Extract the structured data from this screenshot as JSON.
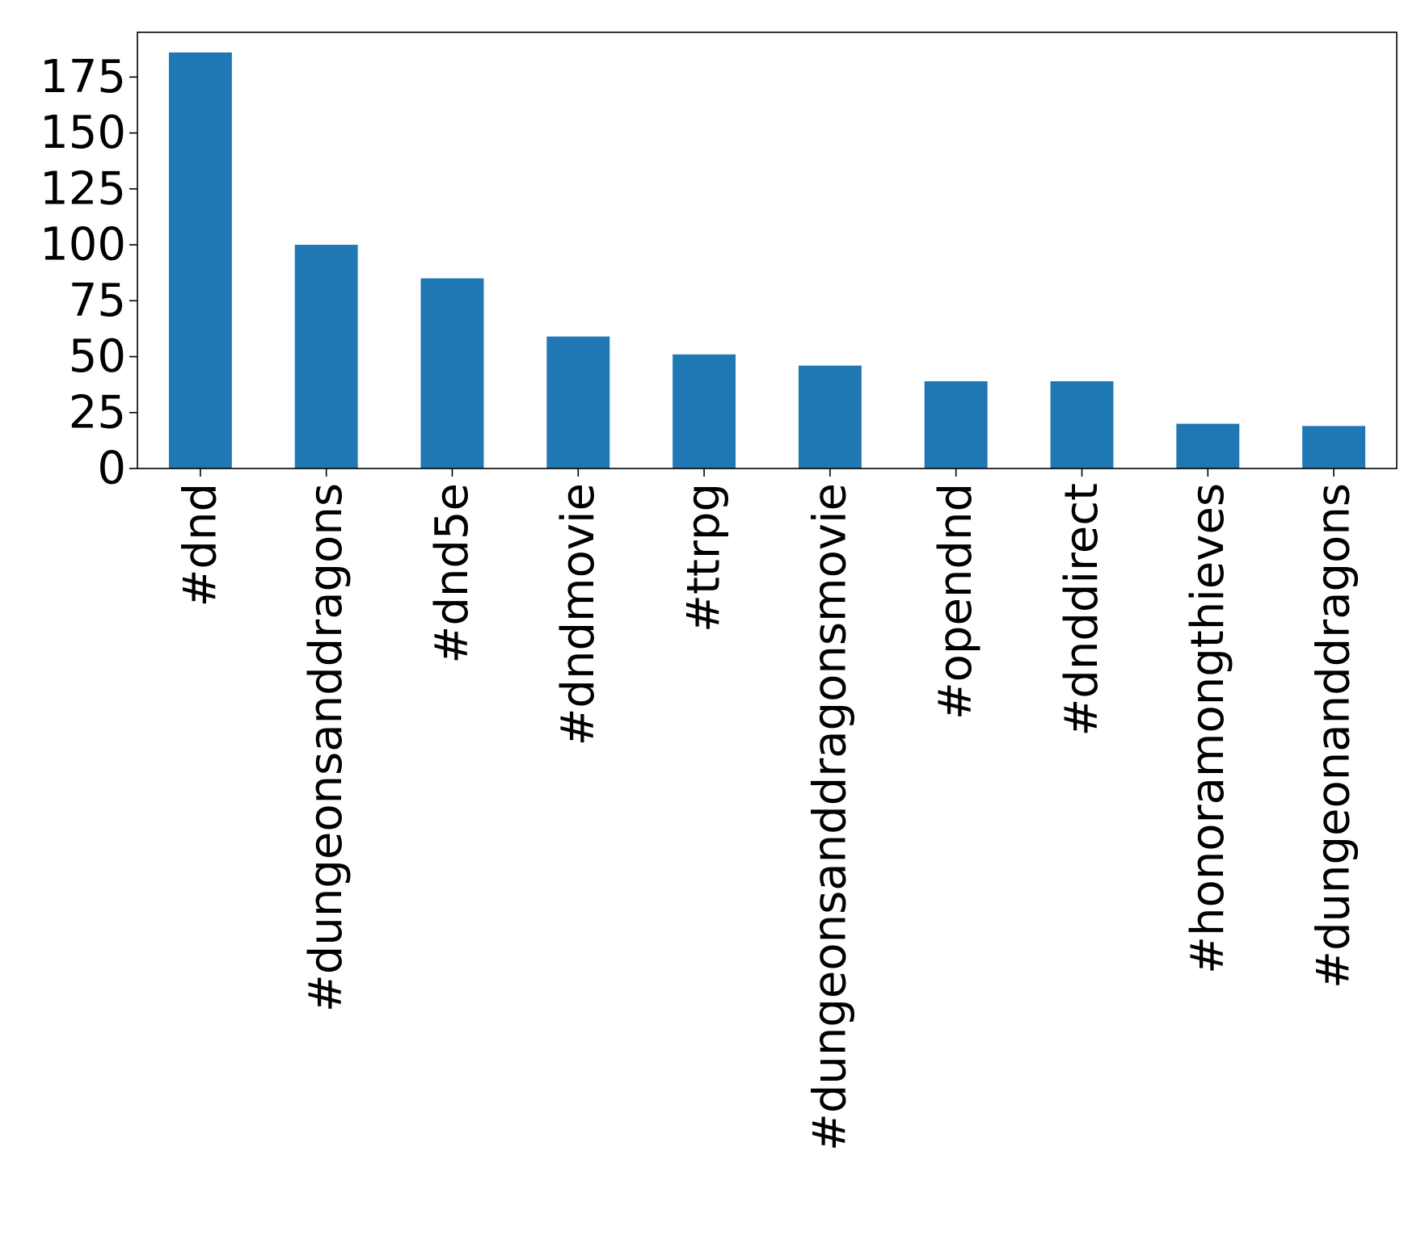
{
  "chart_data": {
    "type": "bar",
    "categories": [
      "#dnd",
      "#dungeonsanddragons",
      "#dnd5e",
      "#dndmovie",
      "#ttrpg",
      "#dungeonsanddragonsmovie",
      "#opendnd",
      "#dnddirect",
      "#honoramongthieves",
      "#dungeonanddragons"
    ],
    "values": [
      186,
      100,
      85,
      59,
      51,
      46,
      39,
      39,
      20,
      19
    ],
    "title": "",
    "xlabel": "",
    "ylabel": "",
    "ylim": [
      0,
      195
    ],
    "yticks": [
      0,
      25,
      50,
      75,
      100,
      125,
      150,
      175
    ],
    "ytick_labels": [
      "0",
      "25",
      "50",
      "75",
      "100",
      "125",
      "150",
      "175"
    ],
    "grid": false,
    "legend": "none",
    "bar_color": "#1f77b4"
  }
}
